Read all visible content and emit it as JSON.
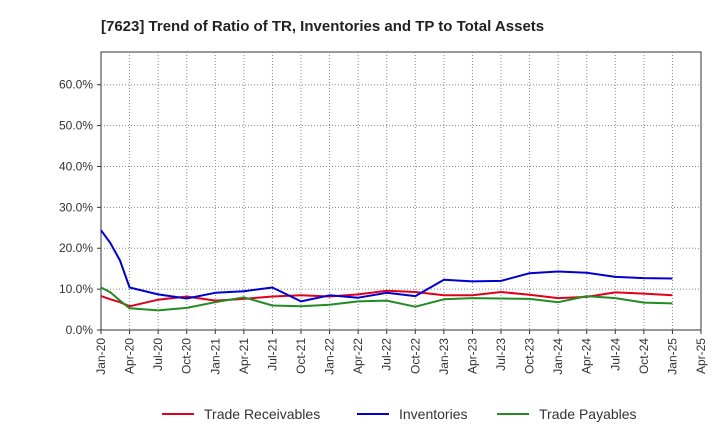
{
  "chart_data": {
    "type": "line",
    "title": "[7623]  Trend of Ratio of TR, Inventories and TP to Total Assets",
    "xlabel": "",
    "ylabel": "",
    "ylim": [
      0,
      0.68
    ],
    "yticks": [
      0,
      0.1,
      0.2,
      0.3,
      0.4,
      0.5,
      0.6
    ],
    "ytick_labels": [
      "0.0%",
      "10.0%",
      "20.0%",
      "30.0%",
      "40.0%",
      "50.0%",
      "60.0%"
    ],
    "xtick_labels": [
      "Jan-20",
      "Apr-20",
      "Jul-20",
      "Oct-20",
      "Jan-21",
      "Apr-21",
      "Jul-21",
      "Oct-21",
      "Jan-22",
      "Apr-22",
      "Jul-22",
      "Oct-22",
      "Jan-23",
      "Apr-23",
      "Jul-23",
      "Oct-23",
      "Jan-24",
      "Apr-24",
      "Jul-24",
      "Oct-24",
      "Jan-25",
      "Apr-25"
    ],
    "grid": true,
    "legend_position": "bottom",
    "x": [
      "2020-01",
      "2020-02",
      "2020-03",
      "2020-04",
      "2020-07",
      "2020-10",
      "2021-01",
      "2021-04",
      "2021-07",
      "2021-10",
      "2022-01",
      "2022-04",
      "2022-07",
      "2022-10",
      "2023-01",
      "2023-04",
      "2023-07",
      "2023-10",
      "2024-01",
      "2024-04",
      "2024-07",
      "2024-10",
      "2025-01"
    ],
    "series": [
      {
        "name": "Trade Receivables",
        "color": "#e0001b",
        "values": [
          0.083,
          0.075,
          0.068,
          0.058,
          0.074,
          0.082,
          0.072,
          0.076,
          0.082,
          0.085,
          0.082,
          0.087,
          0.096,
          0.093,
          0.085,
          0.085,
          0.093,
          0.086,
          0.078,
          0.081,
          0.092,
          0.089,
          0.085
        ]
      },
      {
        "name": "Inventories",
        "color": "#0000d0",
        "values": [
          0.244,
          0.212,
          0.17,
          0.104,
          0.087,
          0.077,
          0.091,
          0.095,
          0.104,
          0.07,
          0.085,
          0.079,
          0.091,
          0.083,
          0.123,
          0.119,
          0.12,
          0.139,
          0.143,
          0.14,
          0.13,
          0.127,
          0.126
        ]
      },
      {
        "name": "Trade Payables",
        "color": "#228b22",
        "values": [
          0.104,
          0.092,
          0.072,
          0.053,
          0.048,
          0.054,
          0.068,
          0.08,
          0.06,
          0.058,
          0.062,
          0.07,
          0.072,
          0.057,
          0.075,
          0.078,
          0.077,
          0.076,
          0.068,
          0.083,
          0.078,
          0.067,
          0.065
        ]
      }
    ]
  }
}
